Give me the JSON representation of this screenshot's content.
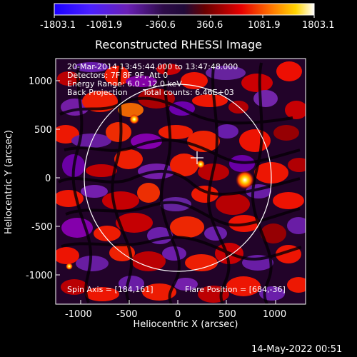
{
  "plot": {
    "title": "Reconstructed RHESSI Image",
    "x_axis_label": "Heliocentric X (arcsec)",
    "y_axis_label": "Heliocentric Y (arcsec)",
    "x_ticks": [
      "-1000",
      "-500",
      "0",
      "500",
      "1000"
    ],
    "y_ticks": [
      "1000",
      "500",
      "0",
      "-500",
      "-1000"
    ]
  },
  "colorbar": {
    "tick_labels": [
      "-1803.1",
      "-1081.9",
      "-360.6",
      "360.6",
      "1081.9",
      "1803.1"
    ]
  },
  "info_overlay": {
    "line_1": "20-Mar-2014 13:45:44.000 to 13:47:48.000",
    "line_2": "Detectors: 7F 8F 9F, Att 0",
    "line_3": "Energy Range: 6.0 - 12.0 keV",
    "line_4a": "Back Projection",
    "line_4b": "Total counts: 6.46E+03"
  },
  "footer": {
    "spin_axis": "Spin Axis = [184,161]",
    "flare_position": "Flare Position = [684,-36]",
    "timestamp": "14-May-2022 00:51"
  },
  "colors": {
    "background": "#000000",
    "axis": "#ffffff",
    "text": "#ffffff",
    "colormap_negative": "#0000ff",
    "colormap_neutral": "#2a0033",
    "colormap_positive": "#ff0000",
    "colormap_highlight": "#ffff00",
    "colormap_max": "#ffffff"
  }
}
